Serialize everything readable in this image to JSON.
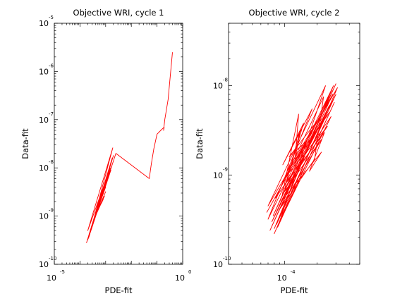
{
  "chart_data": [
    {
      "type": "line",
      "title": "Objective WRI, cycle 1",
      "xlabel": "PDE-fit",
      "ylabel": "Data-fit",
      "xscale": "log",
      "yscale": "log",
      "xlim": [
        1e-05,
        1
      ],
      "ylim": [
        1e-10,
        1e-05
      ],
      "xticks": [
        {
          "value": 1e-05,
          "base": "10",
          "exp": "-5"
        },
        {
          "value": 1,
          "base": "10",
          "exp": "0"
        }
      ],
      "yticks": [
        {
          "value": 1e-10,
          "base": "10",
          "exp": "-10"
        },
        {
          "value": 1e-09,
          "base": "10",
          "exp": "-9"
        },
        {
          "value": 1e-08,
          "base": "10",
          "exp": "-8"
        },
        {
          "value": 1e-07,
          "base": "10",
          "exp": "-7"
        },
        {
          "value": 1e-06,
          "base": "10",
          "exp": "-6"
        },
        {
          "value": 1e-05,
          "base": "10",
          "exp": "-5"
        }
      ],
      "grid": false,
      "series": [
        {
          "color": "#ff0000",
          "points": [
            [
              0.4,
              2.5e-06
            ],
            [
              0.27,
              2.6e-07
            ],
            [
              0.2,
              1e-07
            ],
            [
              0.18,
              6e-08
            ],
            [
              0.19,
              7e-08
            ],
            [
              0.14,
              6e-08
            ],
            [
              0.1,
              5e-08
            ],
            [
              0.075,
              2.5e-08
            ],
            [
              0.06,
              1.2e-08
            ],
            [
              0.05,
              6e-09
            ],
            [
              0.0025,
              2e-08
            ],
            [
              0.0002,
              3.2e-10
            ],
            [
              0.002,
              1.8e-08
            ],
            [
              0.00018,
              2.8e-10
            ],
            [
              0.0018,
              1.6e-08
            ],
            [
              0.00022,
              3.6e-10
            ],
            [
              0.0016,
              1.3e-08
            ],
            [
              0.00024,
              4.2e-10
            ],
            [
              0.0019,
              2.6e-08
            ],
            [
              0.0002,
              5e-10
            ],
            [
              0.0015,
              1e-08
            ],
            [
              0.00026,
              4.8e-10
            ],
            [
              0.0014,
              8e-09
            ],
            [
              0.00028,
              5.5e-10
            ],
            [
              0.0013,
              7e-09
            ],
            [
              0.0003,
              6.2e-10
            ],
            [
              0.0012,
              6e-09
            ],
            [
              0.00032,
              7e-10
            ],
            [
              0.0011,
              5e-09
            ],
            [
              0.00034,
              8e-10
            ],
            [
              0.001,
              4e-09
            ],
            [
              0.00036,
              9e-10
            ],
            [
              0.001,
              3.2e-09
            ],
            [
              0.0004,
              1e-09
            ],
            [
              0.0009,
              2.6e-09
            ],
            [
              0.00045,
              1.2e-09
            ],
            [
              0.0008,
              2.2e-09
            ],
            [
              0.0005,
              1.5e-09
            ],
            [
              0.0017,
              1.1e-08
            ],
            [
              0.00021,
              3.4e-10
            ],
            [
              0.0016,
              9e-09
            ],
            [
              0.00025,
              4.5e-10
            ]
          ]
        }
      ]
    },
    {
      "type": "line",
      "title": "Objective WRI, cycle 2",
      "xlabel": "PDE-fit",
      "ylabel": "Data-fit",
      "xscale": "log",
      "yscale": "log",
      "xlim": [
        3e-05,
        0.0005
      ],
      "ylim": [
        1e-10,
        5e-08
      ],
      "xticks": [
        {
          "value": 0.0001,
          "base": "10",
          "exp": "-4"
        }
      ],
      "yticks": [
        {
          "value": 1e-10,
          "base": "10",
          "exp": "-10"
        },
        {
          "value": 1e-09,
          "base": "10",
          "exp": "-9"
        },
        {
          "value": 1e-08,
          "base": "10",
          "exp": "-8"
        }
      ],
      "grid": false,
      "series": [
        {
          "color": "#ff0000",
          "points": [
            [
              6.8e-05,
              3.8e-10
            ],
            [
              0.00028,
              8e-09
            ],
            [
              7.3e-05,
              2.4e-10
            ],
            [
              0.0003,
              1.05e-08
            ],
            [
              7.6e-05,
              3e-10
            ],
            [
              0.00026,
              6e-09
            ],
            [
              8e-05,
              2.2e-10
            ],
            [
              0.00031,
              9.5e-09
            ],
            [
              7e-05,
              4.5e-10
            ],
            [
              0.00024,
              1e-08
            ],
            [
              8.6e-05,
              2.6e-10
            ],
            [
              0.00029,
              6.5e-09
            ],
            [
              9e-05,
              3e-10
            ],
            [
              0.00027,
              4.5e-09
            ],
            [
              8.2e-05,
              5.5e-10
            ],
            [
              0.00023,
              7.5e-09
            ],
            [
              0.00019,
              1.5e-09
            ],
            [
              8.8e-05,
              4e-10
            ],
            [
              0.00022,
              2.5e-09
            ],
            [
              9.5e-05,
              6e-10
            ],
            [
              0.000135,
              4.8e-09
            ],
            [
              0.000125,
              1.5e-09
            ],
            [
              0.00014,
              3.2e-09
            ],
            [
              0.0001,
              7e-10
            ],
            [
              0.00025,
              3.5e-09
            ],
            [
              9.8e-05,
              9e-10
            ],
            [
              0.00026,
              5e-09
            ],
            [
              0.000105,
              1.1e-09
            ],
            [
              0.0002,
              4e-09
            ],
            [
              0.00011,
              1.6e-09
            ],
            [
              0.00016,
              2.4e-09
            ],
            [
              7.8e-05,
              3.5e-10
            ],
            [
              0.000275,
              9e-09
            ],
            [
              8.4e-05,
              2.8e-10
            ],
            [
              0.0003,
              8e-09
            ],
            [
              9.2e-05,
              5e-10
            ],
            [
              0.00022,
              1.8e-09
            ],
            [
              0.00017,
              1.1e-09
            ],
            [
              0.000235,
              3e-09
            ],
            [
              0.000102,
              8e-10
            ],
            [
              0.00015,
              3.8e-09
            ],
            [
              9.6e-05,
              1.3e-09
            ],
            [
              0.00018,
              5.5e-09
            ],
            [
              7e-05,
              3.2e-10
            ],
            [
              0.000285,
              1e-08
            ],
            [
              8e-05,
              2.5e-10
            ]
          ]
        }
      ]
    }
  ]
}
